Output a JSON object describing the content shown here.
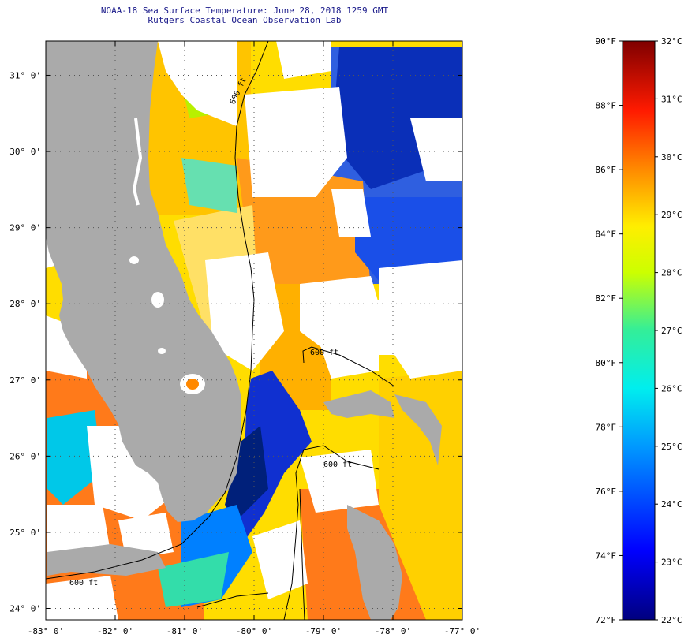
{
  "title": {
    "line1": "NOAA-18 Sea Surface Temperature:  June 28, 2018 1259 GMT",
    "line2": "Rutgers Coastal Ocean Observation Lab"
  },
  "map": {
    "lon_range": [
      -83,
      -77
    ],
    "lat_range": [
      23.85,
      31.45
    ],
    "lon_ticks": [
      {
        "value": -83,
        "label": "-83° 0'"
      },
      {
        "value": -82,
        "label": "-82° 0'"
      },
      {
        "value": -81,
        "label": "-81° 0'"
      },
      {
        "value": -80,
        "label": "-80° 0'"
      },
      {
        "value": -79,
        "label": "-79° 0'"
      },
      {
        "value": -78,
        "label": "-78° 0'"
      },
      {
        "value": -77,
        "label": "-77° 0'"
      }
    ],
    "lat_ticks": [
      {
        "value": 31,
        "label": "31° 0'"
      },
      {
        "value": 30,
        "label": "30° 0'"
      },
      {
        "value": 29,
        "label": "29° 0'"
      },
      {
        "value": 28,
        "label": "28° 0'"
      },
      {
        "value": 27,
        "label": "27° 0'"
      },
      {
        "value": 26,
        "label": "26° 0'"
      },
      {
        "value": 25,
        "label": "25° 0'"
      },
      {
        "value": 24,
        "label": "24° 0'"
      }
    ],
    "contour_labels": [
      "600 ft",
      "600 ft",
      "600 ft",
      "600 ft"
    ],
    "land_color": "#aaaaaa",
    "cloud_color": "#ffffff"
  },
  "colorbar": {
    "f_labels": [
      "90°F",
      "88°F",
      "86°F",
      "84°F",
      "82°F",
      "80°F",
      "78°F",
      "76°F",
      "74°F",
      "72°F"
    ],
    "c_labels": [
      "32°C",
      "31°C",
      "30°C",
      "29°C",
      "28°C",
      "27°C",
      "26°C",
      "25°C",
      "24°C",
      "23°C",
      "22°C"
    ],
    "f_range": [
      72,
      90
    ],
    "c_range": [
      22,
      32
    ]
  }
}
